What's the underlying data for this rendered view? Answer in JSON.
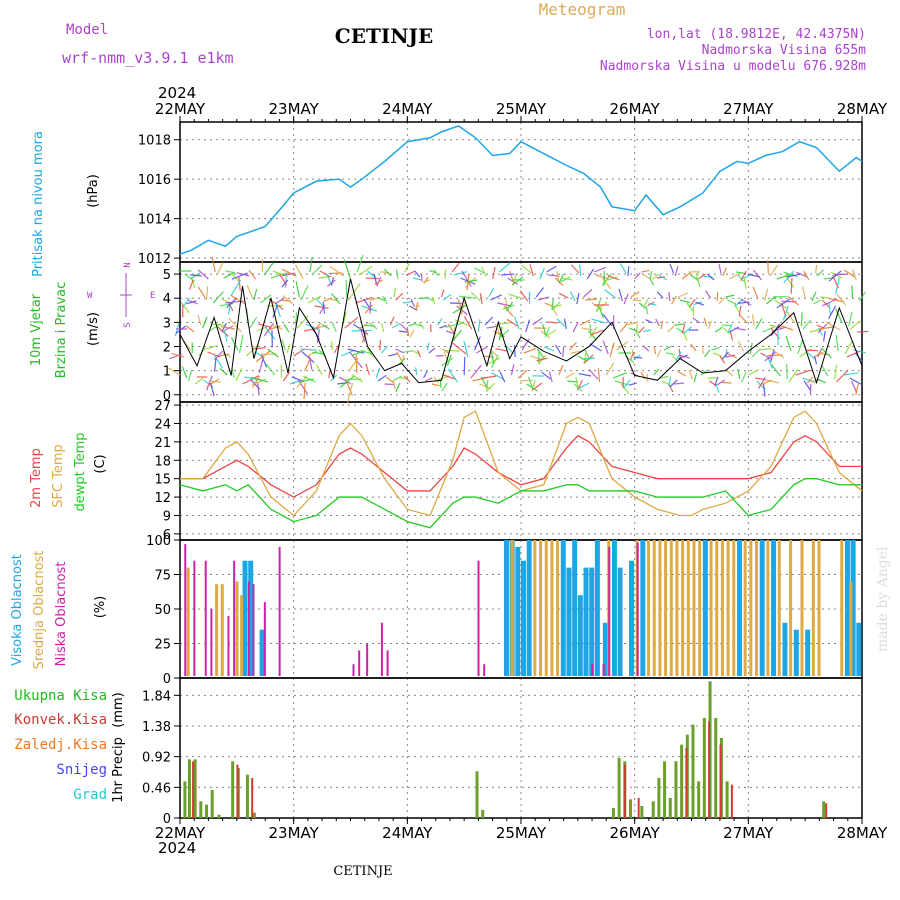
{
  "header": {
    "model_label": "Model",
    "model_name": "wrf-nmm_v3.9.1 e1km",
    "station": "CETINJE",
    "product": "Meteogram",
    "lonlat": "lon,lat (18.9812E, 42.4375N)",
    "altitude": "Nadmorska Visina 655m",
    "model_altitude": "Nadmorska Visina u modelu 676.928m"
  },
  "footer": {
    "station": "CETINJE",
    "credit": "made by Angel"
  },
  "time_axis": {
    "year": "2024",
    "labels": [
      "22MAY",
      "23MAY",
      "24MAY",
      "25MAY",
      "26MAY",
      "27MAY",
      "28MAY"
    ]
  },
  "colors": {
    "pressure": "#1ca6e6",
    "wind_label": "#22bb22",
    "temp2m": "#ee4444",
    "sfc_temp": "#ddaa44",
    "dewpt": "#22cc22",
    "high_cloud": "#1ca6e6",
    "mid_cloud": "#ddaa44",
    "low_cloud": "#cc22aa",
    "total_precip": "#6aa02a",
    "conv_precip": "#d03a30",
    "frozen": "#ee7722",
    "snow": "#4444ee",
    "graupel": "#22cccc",
    "header_purple": "#aa44cc",
    "header_gold": "#ddaa55"
  },
  "chart_data": [
    {
      "type": "line",
      "name": "pressure",
      "ylabel": "Pritisak na nivou mora",
      "unit": "(hPa)",
      "ylim": [
        1011.8,
        1018.9
      ],
      "yticks": [
        1012,
        1014,
        1016,
        1018
      ],
      "x_days": [
        0,
        0.1,
        0.25,
        0.4,
        0.5,
        0.6,
        0.75,
        0.9,
        1.0,
        1.2,
        1.4,
        1.5,
        1.6,
        1.8,
        2.0,
        2.2,
        2.3,
        2.45,
        2.6,
        2.75,
        2.9,
        3.0,
        3.2,
        3.4,
        3.55,
        3.7,
        3.8,
        4.0,
        4.1,
        4.25,
        4.4,
        4.6,
        4.75,
        4.9,
        5.0,
        5.15,
        5.3,
        5.45,
        5.6,
        5.8,
        5.95,
        6.0
      ],
      "values": [
        1012.2,
        1012.4,
        1012.9,
        1012.6,
        1013.1,
        1013.3,
        1013.6,
        1014.6,
        1015.3,
        1015.9,
        1016.0,
        1015.6,
        1016.0,
        1016.9,
        1017.9,
        1018.1,
        1018.4,
        1018.7,
        1018.1,
        1017.2,
        1017.3,
        1017.9,
        1017.3,
        1016.7,
        1016.3,
        1015.6,
        1014.6,
        1014.4,
        1015.2,
        1014.2,
        1014.6,
        1015.3,
        1016.4,
        1016.9,
        1016.8,
        1017.2,
        1017.4,
        1017.9,
        1017.6,
        1016.4,
        1017.1,
        1016.9
      ]
    },
    {
      "type": "line",
      "name": "wind",
      "ylabel": [
        "10m Vjetar",
        "Brzina i Pravac"
      ],
      "unit": "(m/s)",
      "compass": [
        "W",
        "E",
        "N",
        "S"
      ],
      "ylim": [
        -0.3,
        5.5
      ],
      "yticks": [
        0,
        1,
        2,
        3,
        4,
        5
      ],
      "x_days": [
        0,
        0.15,
        0.3,
        0.45,
        0.55,
        0.65,
        0.8,
        0.95,
        1.05,
        1.2,
        1.35,
        1.5,
        1.65,
        1.8,
        1.95,
        2.1,
        2.3,
        2.5,
        2.7,
        2.8,
        2.9,
        3.0,
        3.2,
        3.4,
        3.6,
        3.8,
        4.0,
        4.2,
        4.4,
        4.6,
        4.8,
        5.0,
        5.2,
        5.4,
        5.6,
        5.8,
        6.0
      ],
      "values": [
        2.5,
        1.2,
        3.2,
        0.8,
        4.5,
        1.5,
        4.0,
        0.9,
        3.6,
        2.5,
        0.7,
        4.8,
        2.0,
        1.0,
        1.3,
        0.5,
        0.6,
        4.0,
        1.2,
        3.0,
        1.5,
        2.4,
        1.8,
        1.4,
        2.0,
        3.0,
        0.8,
        0.6,
        1.5,
        0.9,
        1.0,
        1.8,
        2.5,
        3.4,
        0.5,
        3.6,
        1.2
      ]
    },
    {
      "type": "line",
      "name": "temperature",
      "ylabel": [
        "2m Temp",
        "SFC Temp",
        "dewpt Temp"
      ],
      "unit": "(C)",
      "ylim": [
        5,
        27.5
      ],
      "yticks": [
        6,
        9,
        12,
        15,
        18,
        21,
        24,
        27
      ],
      "x_days": [
        0,
        0.2,
        0.4,
        0.5,
        0.6,
        0.8,
        1.0,
        1.2,
        1.4,
        1.5,
        1.6,
        1.8,
        2.0,
        2.2,
        2.4,
        2.5,
        2.6,
        2.8,
        3.0,
        3.2,
        3.4,
        3.5,
        3.6,
        3.8,
        4.0,
        4.2,
        4.4,
        4.5,
        4.6,
        4.8,
        5.0,
        5.2,
        5.4,
        5.5,
        5.6,
        5.8,
        6.0
      ],
      "series": [
        {
          "name": "2m Temp",
          "key": "temp2m",
          "values": [
            15,
            15,
            17,
            18,
            17,
            14,
            12,
            14,
            19,
            20,
            19,
            16,
            13,
            13,
            17,
            20,
            19,
            16,
            14,
            15,
            20,
            22,
            21,
            17,
            16,
            15,
            15,
            15,
            15,
            15,
            15,
            16,
            21,
            22,
            21,
            17,
            17
          ]
        },
        {
          "name": "SFC Temp",
          "key": "sfc_temp",
          "values": [
            15,
            15,
            20,
            21,
            19,
            12,
            9,
            13,
            22,
            24,
            22,
            15,
            10,
            9,
            18,
            25,
            26,
            16,
            13,
            14,
            24,
            25,
            24,
            15,
            12,
            10,
            9,
            9,
            10,
            11,
            13,
            17,
            25,
            26,
            24,
            16,
            13
          ]
        },
        {
          "name": "dewpt Temp",
          "key": "dewpt",
          "values": [
            14,
            13,
            14,
            13,
            14,
            10,
            8,
            9,
            12,
            12,
            12,
            10,
            8,
            7,
            11,
            12,
            12,
            11,
            13,
            13,
            14,
            14,
            13,
            13,
            13,
            12,
            12,
            12,
            12,
            13,
            9,
            10,
            14,
            15,
            15,
            14,
            14
          ]
        }
      ]
    },
    {
      "type": "bar",
      "name": "cloud",
      "ylabel": [
        "Visoka Oblacnost",
        "Srednja Oblacnost",
        "Niska Oblacnost"
      ],
      "unit": "(%)",
      "ylim": [
        0,
        100
      ],
      "yticks": [
        0,
        25,
        50,
        75,
        100
      ],
      "series": [
        {
          "name": "Visoka Oblacnost",
          "key": "high_cloud",
          "bars": [
            [
              0.55,
              85
            ],
            [
              0.6,
              85
            ],
            [
              0.7,
              35
            ],
            [
              2.85,
              100
            ],
            [
              2.9,
              100
            ],
            [
              2.95,
              95
            ],
            [
              3.0,
              85
            ],
            [
              3.05,
              100
            ],
            [
              3.35,
              100
            ],
            [
              3.4,
              80
            ],
            [
              3.45,
              100
            ],
            [
              3.5,
              60
            ],
            [
              3.55,
              80
            ],
            [
              3.6,
              80
            ],
            [
              3.65,
              100
            ],
            [
              3.72,
              40
            ],
            [
              3.8,
              100
            ],
            [
              3.85,
              80
            ],
            [
              3.95,
              85
            ],
            [
              4.05,
              100
            ],
            [
              4.6,
              100
            ],
            [
              4.9,
              100
            ],
            [
              5.1,
              100
            ],
            [
              5.2,
              100
            ],
            [
              5.3,
              40
            ],
            [
              5.4,
              35
            ],
            [
              5.5,
              35
            ],
            [
              5.85,
              100
            ],
            [
              5.9,
              100
            ],
            [
              5.95,
              40
            ]
          ]
        },
        {
          "name": "Srednja Oblacnost",
          "key": "mid_cloud",
          "bars": [
            [
              0.05,
              80
            ],
            [
              0.3,
              68
            ],
            [
              0.35,
              68
            ],
            [
              0.48,
              70
            ],
            [
              0.52,
              60
            ],
            [
              2.9,
              100
            ],
            [
              3.1,
              100
            ],
            [
              3.15,
              100
            ],
            [
              3.2,
              100
            ],
            [
              3.25,
              100
            ],
            [
              3.3,
              100
            ],
            [
              3.75,
              100
            ],
            [
              4.0,
              100
            ],
            [
              4.1,
              100
            ],
            [
              4.15,
              100
            ],
            [
              4.2,
              100
            ],
            [
              4.25,
              100
            ],
            [
              4.3,
              100
            ],
            [
              4.35,
              100
            ],
            [
              4.4,
              100
            ],
            [
              4.45,
              100
            ],
            [
              4.5,
              100
            ],
            [
              4.55,
              100
            ],
            [
              4.65,
              100
            ],
            [
              4.7,
              100
            ],
            [
              4.75,
              100
            ],
            [
              4.8,
              100
            ],
            [
              4.85,
              100
            ],
            [
              4.95,
              100
            ],
            [
              5.0,
              100
            ],
            [
              5.05,
              100
            ],
            [
              5.15,
              100
            ],
            [
              5.25,
              100
            ],
            [
              5.35,
              100
            ],
            [
              5.45,
              100
            ],
            [
              5.55,
              100
            ],
            [
              5.6,
              100
            ],
            [
              5.8,
              100
            ],
            [
              5.88,
              70
            ]
          ]
        },
        {
          "name": "Niska Oblacnost",
          "key": "low_cloud",
          "bars": [
            [
              0.02,
              97
            ],
            [
              0.1,
              85
            ],
            [
              0.2,
              85
            ],
            [
              0.25,
              50
            ],
            [
              0.4,
              45
            ],
            [
              0.45,
              85
            ],
            [
              0.58,
              70
            ],
            [
              0.62,
              68
            ],
            [
              0.72,
              55
            ],
            [
              0.85,
              95
            ],
            [
              1.5,
              10
            ],
            [
              1.55,
              20
            ],
            [
              1.62,
              25
            ],
            [
              1.75,
              40
            ],
            [
              1.8,
              20
            ],
            [
              2.6,
              85
            ],
            [
              2.65,
              10
            ],
            [
              3.6,
              10
            ],
            [
              3.7,
              10
            ],
            [
              3.75,
              95
            ],
            [
              4.0,
              98
            ]
          ]
        }
      ]
    },
    {
      "type": "bar",
      "name": "precipitation",
      "ylabel": "1hr Precip",
      "unit": "(mm)",
      "legend": [
        "Ukupna Kisa",
        "Konvek.Kisa",
        "Zaledj.Kisa",
        "Snijeg",
        "Grad"
      ],
      "ylim": [
        0,
        2.1
      ],
      "yticks": [
        0,
        0.46,
        0.92,
        1.38,
        1.84
      ],
      "ytick_labels": [
        "0",
        "0.46",
        "0.92",
        "1.38",
        "1.84"
      ],
      "series": [
        {
          "name": "Ukupna Kisa",
          "key": "total_precip",
          "bars": [
            [
              0.03,
              0.55
            ],
            [
              0.07,
              0.88
            ],
            [
              0.12,
              0.88
            ],
            [
              0.17,
              0.25
            ],
            [
              0.22,
              0.2
            ],
            [
              0.27,
              0.42
            ],
            [
              0.33,
              0.05
            ],
            [
              0.45,
              0.85
            ],
            [
              0.5,
              0.75
            ],
            [
              0.58,
              0.65
            ],
            [
              0.64,
              0.08
            ],
            [
              2.6,
              0.7
            ],
            [
              2.65,
              0.12
            ],
            [
              3.8,
              0.15
            ],
            [
              3.85,
              0.9
            ],
            [
              3.9,
              0.85
            ],
            [
              3.95,
              0.28
            ],
            [
              4.05,
              0.18
            ],
            [
              4.15,
              0.25
            ],
            [
              4.2,
              0.6
            ],
            [
              4.25,
              0.85
            ],
            [
              4.3,
              0.3
            ],
            [
              4.35,
              0.85
            ],
            [
              4.4,
              1.1
            ],
            [
              4.45,
              1.25
            ],
            [
              4.5,
              1.4
            ],
            [
              4.55,
              0.55
            ],
            [
              4.6,
              1.5
            ],
            [
              4.65,
              2.05
            ],
            [
              4.7,
              1.5
            ],
            [
              4.75,
              1.2
            ],
            [
              4.8,
              0.55
            ],
            [
              5.65,
              0.25
            ]
          ]
        },
        {
          "name": "Konvek.Kisa",
          "key": "conv_precip",
          "bars": [
            [
              0.08,
              0.85
            ],
            [
              0.47,
              0.8
            ],
            [
              0.6,
              0.6
            ],
            [
              3.88,
              0.8
            ],
            [
              4.0,
              0.3
            ],
            [
              4.42,
              1.05
            ],
            [
              4.62,
              1.45
            ],
            [
              4.72,
              1.1
            ],
            [
              4.82,
              0.5
            ],
            [
              5.65,
              0.22
            ]
          ]
        }
      ]
    }
  ]
}
